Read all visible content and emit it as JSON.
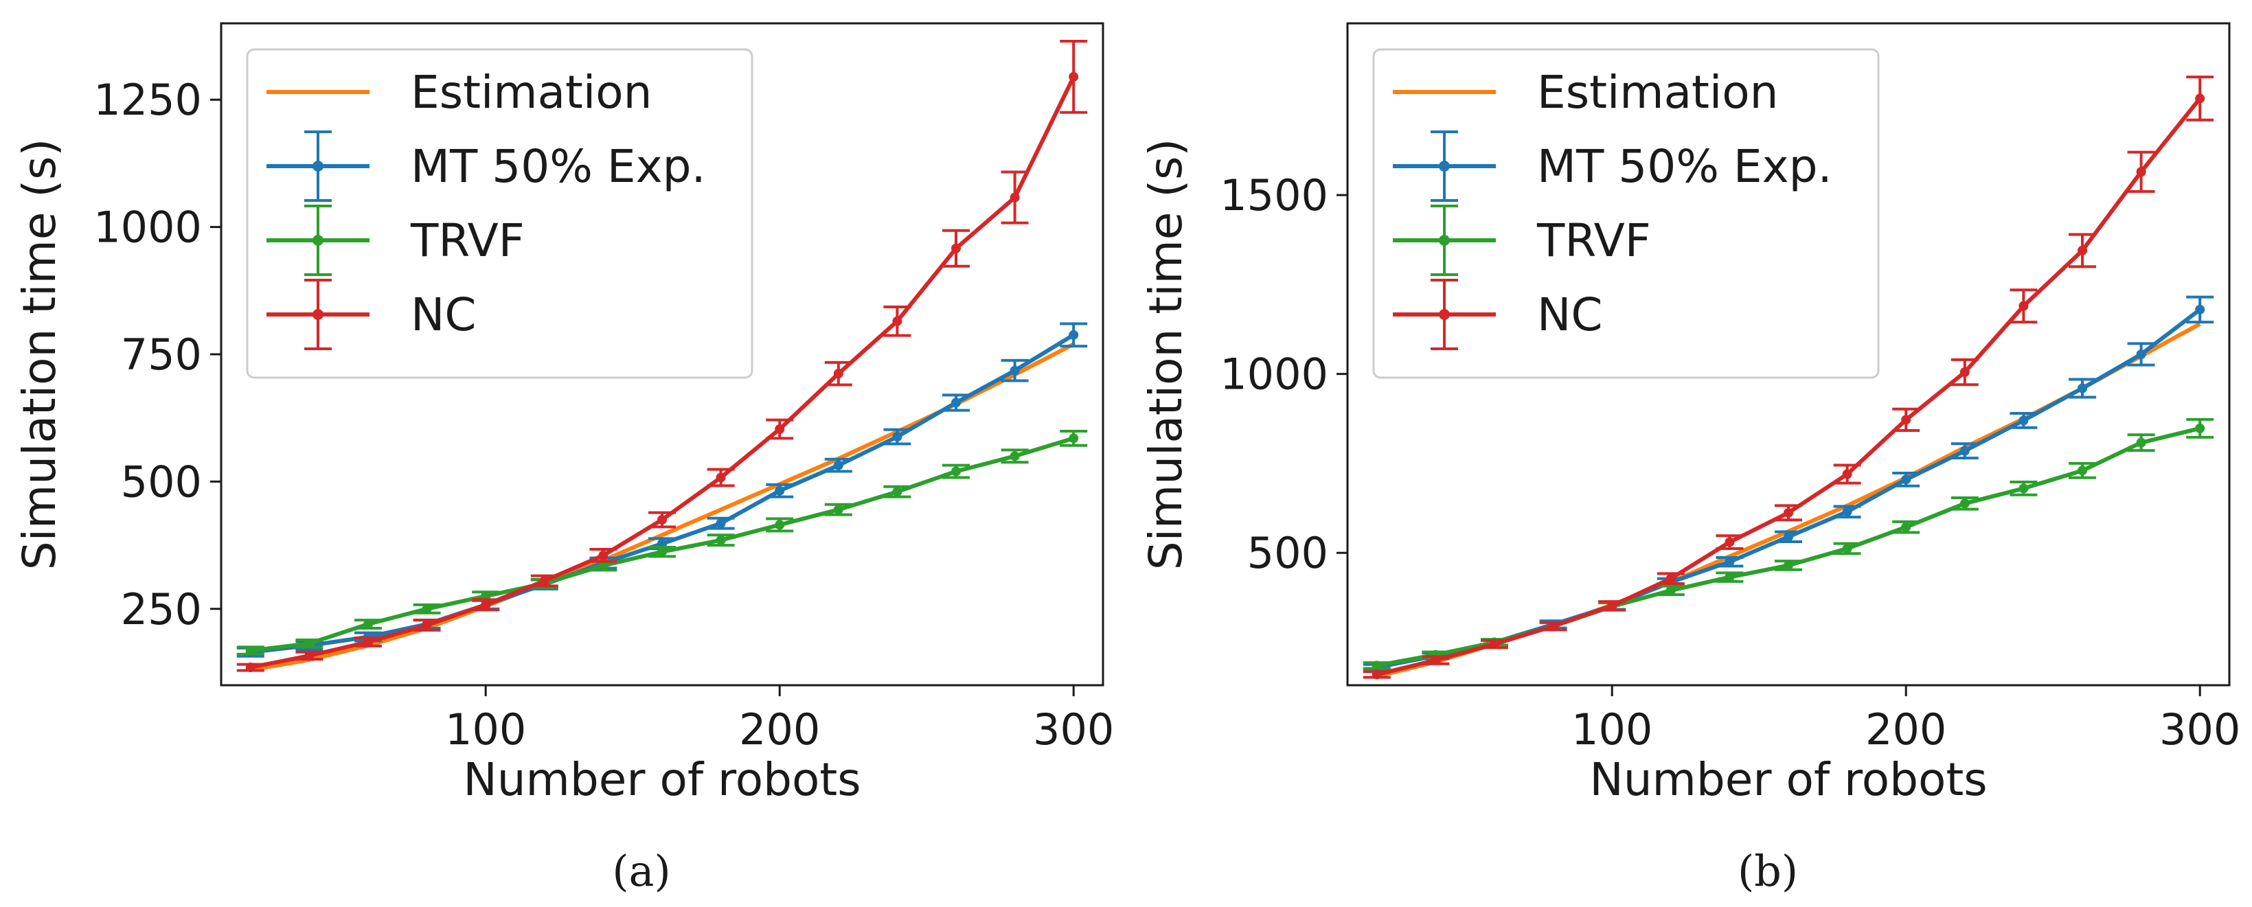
{
  "chart_data": [
    {
      "type": "line",
      "panel_label": "(a)",
      "xlabel": "Number of robots",
      "ylabel": "Simulation time (s)",
      "xlim": [
        10,
        310
      ],
      "ylim": [
        100,
        1400
      ],
      "xticks": [
        100,
        200,
        300
      ],
      "yticks": [
        250,
        500,
        750,
        1000,
        1250
      ],
      "grid": false,
      "legend_position": "top-left",
      "x": [
        20,
        40,
        60,
        80,
        100,
        120,
        140,
        160,
        180,
        200,
        220,
        240,
        260,
        280,
        300
      ],
      "series": [
        {
          "name": "Estimation",
          "color": "#ff7f0e",
          "marker": false,
          "values": [
            130,
            150,
            178,
            212,
            255,
            300,
            345,
            395,
            445,
            495,
            545,
            598,
            652,
            710,
            770
          ]
        },
        {
          "name": "MT 50% Exp.",
          "color": "#1f77b4",
          "marker": true,
          "values": [
            165,
            178,
            195,
            220,
            258,
            298,
            340,
            378,
            418,
            482,
            532,
            588,
            655,
            718,
            788
          ],
          "errors": [
            8,
            8,
            8,
            8,
            8,
            9,
            10,
            10,
            10,
            12,
            12,
            14,
            15,
            20,
            22
          ]
        },
        {
          "name": "TRVF",
          "color": "#2ca02c",
          "marker": true,
          "values": [
            168,
            182,
            220,
            250,
            275,
            300,
            335,
            362,
            385,
            415,
            445,
            480,
            520,
            550,
            585
          ],
          "errors": [
            7,
            7,
            8,
            8,
            8,
            8,
            9,
            9,
            10,
            12,
            10,
            10,
            12,
            12,
            14
          ]
        },
        {
          "name": "NC",
          "color": "#d62728",
          "marker": true,
          "values": [
            135,
            158,
            185,
            218,
            258,
            305,
            355,
            425,
            508,
            603,
            712,
            815,
            958,
            1058,
            1295
          ],
          "errors": [
            6,
            7,
            8,
            10,
            10,
            10,
            12,
            14,
            16,
            18,
            22,
            28,
            35,
            50,
            70
          ]
        }
      ]
    },
    {
      "type": "line",
      "panel_label": "(b)",
      "xlabel": "Number of robots",
      "ylabel": "Simulation time (s)",
      "xlim": [
        10,
        310
      ],
      "ylim": [
        130,
        1980
      ],
      "xticks": [
        100,
        200,
        300
      ],
      "yticks": [
        500,
        1000,
        1500
      ],
      "grid": false,
      "legend_position": "top-left",
      "x": [
        20,
        40,
        60,
        80,
        100,
        120,
        140,
        160,
        180,
        200,
        220,
        240,
        260,
        280,
        300
      ],
      "series": [
        {
          "name": "Estimation",
          "color": "#ff7f0e",
          "marker": false,
          "values": [
            155,
            195,
            245,
            295,
            355,
            418,
            490,
            560,
            632,
            710,
            795,
            875,
            960,
            1050,
            1140
          ]
        },
        {
          "name": "MT 50% Exp.",
          "color": "#1f77b4",
          "marker": true,
          "values": [
            180,
            212,
            250,
            300,
            352,
            418,
            475,
            545,
            615,
            705,
            785,
            870,
            960,
            1055,
            1180
          ],
          "errors": [
            8,
            8,
            8,
            10,
            10,
            10,
            12,
            14,
            15,
            18,
            20,
            20,
            25,
            30,
            35
          ]
        },
        {
          "name": "TRVF",
          "color": "#2ca02c",
          "marker": true,
          "values": [
            185,
            215,
            250,
            295,
            350,
            395,
            432,
            465,
            512,
            572,
            638,
            680,
            730,
            808,
            848
          ],
          "errors": [
            8,
            8,
            8,
            10,
            10,
            12,
            12,
            12,
            14,
            15,
            16,
            18,
            20,
            22,
            25
          ]
        },
        {
          "name": "NC",
          "color": "#d62728",
          "marker": true,
          "values": [
            160,
            200,
            245,
            295,
            352,
            428,
            530,
            612,
            720,
            872,
            1005,
            1190,
            1345,
            1565,
            1770
          ],
          "errors": [
            8,
            10,
            10,
            10,
            12,
            14,
            18,
            20,
            25,
            30,
            35,
            45,
            45,
            55,
            60
          ]
        }
      ]
    }
  ]
}
